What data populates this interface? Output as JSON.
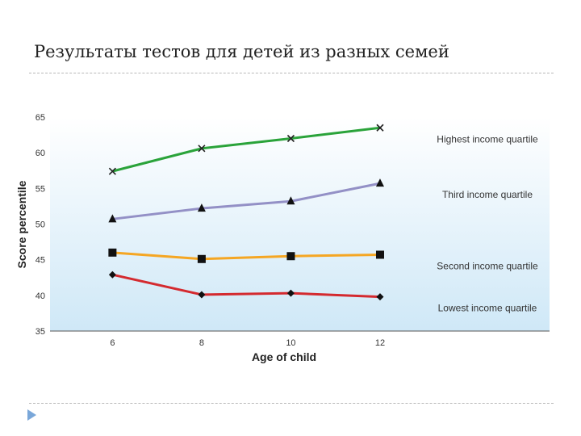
{
  "slide": {
    "title": "Результаты тестов для детей из разных семей"
  },
  "chart_data": {
    "type": "line",
    "title": "",
    "xlabel": "Age of child",
    "ylabel": "Score percentile",
    "x": [
      6,
      8,
      10,
      12
    ],
    "xlim": [
      4.6,
      15.8
    ],
    "ylim": [
      35,
      65
    ],
    "yticks": [
      35,
      40,
      45,
      50,
      55,
      60,
      65
    ],
    "grid": false,
    "legend": "inline-right",
    "background": "#e6f3fb",
    "series": [
      {
        "name": "Highest income quartile",
        "values": [
          57.4,
          60.6,
          62.0,
          63.5
        ],
        "color": "#2aa33a",
        "marker": "x"
      },
      {
        "name": "Third income quartile",
        "values": [
          50.7,
          52.2,
          53.2,
          55.7
        ],
        "color": "#9390c6",
        "marker": "triangle"
      },
      {
        "name": "Second income quartile",
        "values": [
          46.0,
          45.1,
          45.5,
          45.7
        ],
        "color": "#f5a623",
        "marker": "square"
      },
      {
        "name": "Lowest income quartile",
        "values": [
          42.9,
          40.1,
          40.3,
          39.8
        ],
        "color": "#d42a2f",
        "marker": "diamond"
      }
    ]
  }
}
